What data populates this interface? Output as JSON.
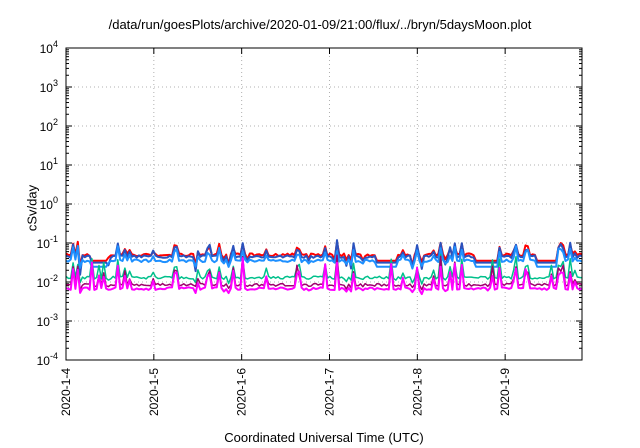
{
  "chart_data": {
    "type": "line",
    "title": "/data/run/goesPlots/archive/2020-01-09/21:00/flux/../bryn/5daysMoon.plot",
    "xlabel": "Coordinated Universal Time (UTC)",
    "ylabel": "cSv/day",
    "yscale": "log",
    "ylim": [
      0.0001,
      10000
    ],
    "xlim": [
      "2020-01-04",
      "2020-01-09T21:00"
    ],
    "grid": true,
    "x_ticks": [
      "2020-1-4",
      "2020-1-5",
      "2020-1-6",
      "2020-1-7",
      "2020-1-8",
      "2020-1-9"
    ],
    "y_ticks": [
      {
        "base": "10",
        "exp": "-4"
      },
      {
        "base": "10",
        "exp": "-3"
      },
      {
        "base": "10",
        "exp": "-2"
      },
      {
        "base": "10",
        "exp": "-1"
      },
      {
        "base": "10",
        "exp": "0"
      },
      {
        "base": "10",
        "exp": "1"
      },
      {
        "base": "10",
        "exp": "2"
      },
      {
        "base": "10",
        "exp": "3"
      },
      {
        "base": "10",
        "exp": "4"
      }
    ],
    "series": [
      {
        "color": "#ff0000",
        "baseline": 0.05,
        "spike_top": 0.12,
        "dip_bottom": 0.02,
        "line_width": 2
      },
      {
        "color": "#2a52be",
        "baseline": 0.045,
        "spike_top": 0.14,
        "dip_bottom": 0.012,
        "line_width": 2
      },
      {
        "color": "#1e90ff",
        "baseline": 0.035,
        "spike_top": 0.1,
        "dip_bottom": 0.02,
        "line_width": 2
      },
      {
        "color": "#00c08b",
        "baseline": 0.013,
        "spike_top": 0.06,
        "dip_bottom": 0.008,
        "line_width": 1.5
      },
      {
        "color": "#a0006e",
        "baseline": 0.0085,
        "spike_top": 0.05,
        "dip_bottom": 0.006,
        "line_width": 1.5
      },
      {
        "color": "#ff00ff",
        "baseline": 0.0068,
        "spike_top": 0.05,
        "dip_bottom": 0.0045,
        "line_width": 2
      }
    ]
  }
}
